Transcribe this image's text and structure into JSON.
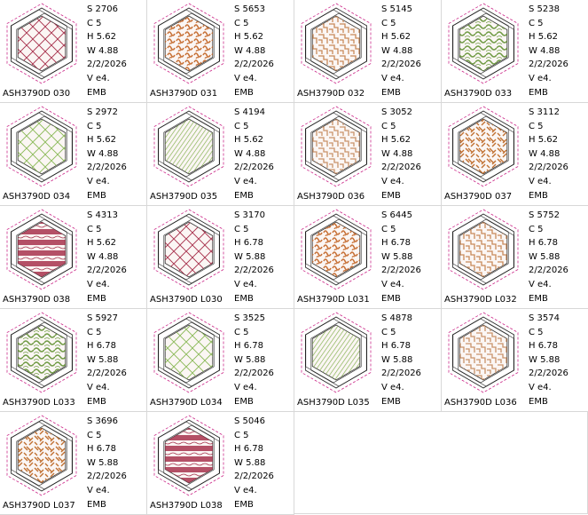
{
  "designs": [
    {
      "name": "ASH3790D  030",
      "stitches": "S  2706",
      "colors": "C  5",
      "height": "H  5.62",
      "width": "W  4.88",
      "date": "2/2/2026",
      "version": "V  e4.",
      "format": "EMB",
      "pattern": "diamond",
      "color": "#a8334e"
    },
    {
      "name": "ASH3790D  031",
      "stitches": "S  5653",
      "colors": "C  5",
      "height": "H  5.62",
      "width": "W  4.88",
      "date": "2/2/2026",
      "version": "V  e4.",
      "format": "EMB",
      "pattern": "swirl",
      "color": "#c8733a"
    },
    {
      "name": "ASH3790D  032",
      "stitches": "S  5145",
      "colors": "C  5",
      "height": "H  5.62",
      "width": "W  4.88",
      "date": "2/2/2026",
      "version": "V  e4.",
      "format": "EMB",
      "pattern": "blocks",
      "color": "#c88a5a"
    },
    {
      "name": "ASH3790D  033",
      "stitches": "S  5238",
      "colors": "C  5",
      "height": "H  5.62",
      "width": "W  4.88",
      "date": "2/2/2026",
      "version": "V  e4.",
      "format": "EMB",
      "pattern": "waves",
      "color": "#6f9a43"
    },
    {
      "name": "ASH3790D  034",
      "stitches": "S  2972",
      "colors": "C  5",
      "height": "H  5.62",
      "width": "W  4.88",
      "date": "2/2/2026",
      "version": "V  e4.",
      "format": "EMB",
      "pattern": "diamond",
      "color": "#8cba5a"
    },
    {
      "name": "ASH3790D  035",
      "stitches": "S  4194",
      "colors": "C  5",
      "height": "H  5.62",
      "width": "W  4.88",
      "date": "2/2/2026",
      "version": "V  e4.",
      "format": "EMB",
      "pattern": "diag",
      "color": "#7fae4a"
    },
    {
      "name": "ASH3790D  036",
      "stitches": "S  3052",
      "colors": "C  5",
      "height": "H  5.62",
      "width": "W  4.88",
      "date": "2/2/2026",
      "version": "V  e4.",
      "format": "EMB",
      "pattern": "blocks",
      "color": "#c9926a"
    },
    {
      "name": "ASH3790D  037",
      "stitches": "S  3112",
      "colors": "C  5",
      "height": "H  5.62",
      "width": "W  4.88",
      "date": "2/2/2026",
      "version": "V  e4.",
      "format": "EMB",
      "pattern": "weave",
      "color": "#c06f30"
    },
    {
      "name": "ASH3790D  038",
      "stitches": "S  4313",
      "colors": "C  5",
      "height": "H  5.62",
      "width": "W  4.88",
      "date": "2/2/2026",
      "version": "V  e4.",
      "format": "EMB",
      "pattern": "stripes",
      "color": "#a8334e"
    },
    {
      "name": "ASH3790D  L030",
      "stitches": "S  3170",
      "colors": "C  5",
      "height": "H  6.78",
      "width": "W  5.88",
      "date": "2/2/2026",
      "version": "V  e4.",
      "format": "EMB",
      "pattern": "diamond",
      "color": "#a8334e"
    },
    {
      "name": "ASH3790D  L031",
      "stitches": "S  6445",
      "colors": "C  5",
      "height": "H  6.78",
      "width": "W  5.88",
      "date": "2/2/2026",
      "version": "V  e4.",
      "format": "EMB",
      "pattern": "swirl",
      "color": "#c8733a"
    },
    {
      "name": "ASH3790D  L032",
      "stitches": "S  5752",
      "colors": "C  5",
      "height": "H  6.78",
      "width": "W  5.88",
      "date": "2/2/2026",
      "version": "V  e4.",
      "format": "EMB",
      "pattern": "blocks",
      "color": "#c88a5a"
    },
    {
      "name": "ASH3790D  L033",
      "stitches": "S  5927",
      "colors": "C  5",
      "height": "H  6.78",
      "width": "W  5.88",
      "date": "2/2/2026",
      "version": "V  e4.",
      "format": "EMB",
      "pattern": "waves",
      "color": "#6f9a43"
    },
    {
      "name": "ASH3790D  L034",
      "stitches": "S  3525",
      "colors": "C  5",
      "height": "H  6.78",
      "width": "W  5.88",
      "date": "2/2/2026",
      "version": "V  e4.",
      "format": "EMB",
      "pattern": "diamond",
      "color": "#8cba5a"
    },
    {
      "name": "ASH3790D  L035",
      "stitches": "S  4878",
      "colors": "C  5",
      "height": "H  6.78",
      "width": "W  5.88",
      "date": "2/2/2026",
      "version": "V  e4.",
      "format": "EMB",
      "pattern": "diag",
      "color": "#7fae4a"
    },
    {
      "name": "ASH3790D  L036",
      "stitches": "S  3574",
      "colors": "C  5",
      "height": "H  6.78",
      "width": "W  5.88",
      "date": "2/2/2026",
      "version": "V  e4.",
      "format": "EMB",
      "pattern": "blocks",
      "color": "#c9926a"
    },
    {
      "name": "ASH3790D  L037",
      "stitches": "S  3696",
      "colors": "C  5",
      "height": "H  6.78",
      "width": "W  5.88",
      "date": "2/2/2026",
      "version": "V  e4.",
      "format": "EMB",
      "pattern": "weave",
      "color": "#c06f30"
    },
    {
      "name": "ASH3790D  L038",
      "stitches": "S  5046",
      "colors": "C  5",
      "height": "H  6.78",
      "width": "W  5.88",
      "date": "2/2/2026",
      "version": "V  e4.",
      "format": "EMB",
      "pattern": "stripes",
      "color": "#a8334e"
    }
  ]
}
